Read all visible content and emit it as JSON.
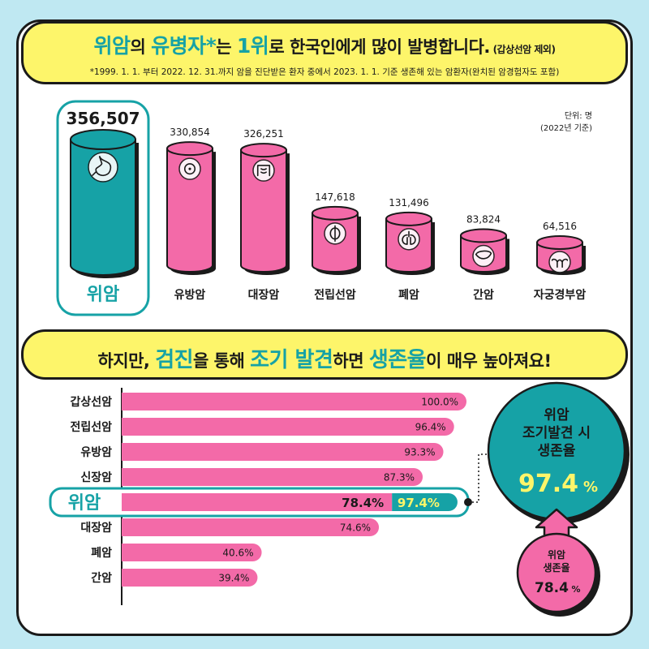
{
  "header": {
    "title_parts": [
      "위암",
      "의 ",
      "유병자",
      "*",
      "는 ",
      "1위",
      "로 한국인에게 많이 발병합니다.",
      " (갑상선암 제외)"
    ],
    "note": "*1999. 1. 1. 부터 2022. 12. 31.까지 암을 진단받은 환자 중에서 2023. 1. 1. 기준 생존해 있는 암환자(완치된 암경험자도 포함)"
  },
  "unit_label": [
    "단위: 명",
    "(2022년 기준)"
  ],
  "section2": {
    "title_parts": [
      "하지만, ",
      "검진",
      "을 통해 ",
      "조기 발견",
      "하면 ",
      "생존율",
      "이 매우 높아져요!"
    ]
  },
  "chart_data": [
    {
      "type": "bar",
      "categories": [
        "위암",
        "유방암",
        "대장암",
        "전립선암",
        "폐암",
        "간암",
        "자궁경부암"
      ],
      "values": [
        356507,
        330854,
        326251,
        147618,
        131496,
        83824,
        64516
      ],
      "value_labels": [
        "356,507",
        "330,854",
        "326,251",
        "147,618",
        "131,496",
        "83,824",
        "64,516"
      ],
      "highlight": "위암",
      "colors": {
        "highlight": "#16a2a6",
        "default": "#f36aa8"
      },
      "icons": [
        "stomach-icon",
        "breast-icon",
        "intestine-icon",
        "prostate-icon",
        "lung-icon",
        "liver-icon",
        "uterus-icon"
      ]
    },
    {
      "type": "bar",
      "orientation": "horizontal",
      "categories": [
        "갑상선암",
        "전립선암",
        "유방암",
        "신장암",
        "위암",
        "대장암",
        "폐암",
        "간암"
      ],
      "values": [
        100.0,
        96.4,
        93.3,
        87.3,
        78.4,
        74.6,
        40.6,
        39.4
      ],
      "value_labels": [
        "100.0%",
        "96.4%",
        "93.3%",
        "87.3%",
        "78.4%",
        "74.6%",
        "40.6%",
        "39.4%"
      ],
      "highlight": {
        "category": "위암",
        "early_detection_value": 97.4,
        "early_detection_label": "97.4%"
      },
      "xlim": [
        0,
        100
      ],
      "colors": {
        "bar": "#f36aa8",
        "early": "#16a2a6",
        "highlight_text": "#fdf56a"
      }
    }
  ],
  "callouts": {
    "early": {
      "lines": [
        "위암",
        "조기발견 시",
        "생존율"
      ],
      "value": "97.4",
      "unit": "%"
    },
    "overall": {
      "lines": [
        "위암",
        "생존율"
      ],
      "value": "78.4",
      "unit": "%"
    }
  }
}
